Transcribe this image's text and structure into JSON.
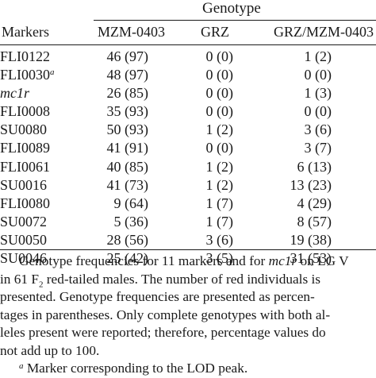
{
  "table": {
    "group_header": "Genotype",
    "columns": [
      "Markers",
      "MZM-0403",
      "GRZ",
      "GRZ/MZM-0403"
    ],
    "rows": [
      {
        "marker": "FLI0122",
        "sup": "",
        "mzm": "46 (97)",
        "grz": "0 (0)",
        "het": "1 (2)"
      },
      {
        "marker": "FLI0030",
        "sup": "a",
        "mzm": "48 (97)",
        "grz": "0 (0)",
        "het": "0 (0)"
      },
      {
        "marker": "mc1r",
        "sup": "",
        "mzm": "26 (85)",
        "grz": "0 (0)",
        "het": "1 (3)"
      },
      {
        "marker": "FLI0008",
        "sup": "",
        "mzm": "35 (93)",
        "grz": "0 (0)",
        "het": "0 (0)"
      },
      {
        "marker": "SU0080",
        "sup": "",
        "mzm": "50 (93)",
        "grz": "1 (2)",
        "het": "3 (6)"
      },
      {
        "marker": "FLI0089",
        "sup": "",
        "mzm": "41 (91)",
        "grz": "0 (0)",
        "het": "3 (7)"
      },
      {
        "marker": "FLI0061",
        "sup": "",
        "mzm": "40 (85)",
        "grz": "1 (2)",
        "het": "6 (13)"
      },
      {
        "marker": "SU0016",
        "sup": "",
        "mzm": "41 (73)",
        "grz": "1 (2)",
        "het": "13 (23)"
      },
      {
        "marker": "FLI0080",
        "sup": "",
        "mzm": "9 (64)",
        "grz": "1 (7)",
        "het": "4 (29)"
      },
      {
        "marker": "SU0072",
        "sup": "",
        "mzm": "5 (36)",
        "grz": "1 (7)",
        "het": "8 (57)"
      },
      {
        "marker": "SU0050",
        "sup": "",
        "mzm": "28 (56)",
        "grz": "3 (6)",
        "het": "19 (38)"
      },
      {
        "marker": "SU0046",
        "sup": "",
        "mzm": "25 (42)",
        "grz": "3 (5)",
        "het": "31 (53)"
      }
    ]
  },
  "notes": {
    "line1_a": "Genotype frequencies for 11 markers and for ",
    "line1_italic": "mc1r",
    "line1_b": " on LG V",
    "line2_a": "in 61 F",
    "line2_sub": "2",
    "line2_b": " red-tailed males. The number of red individuals is",
    "line3": "presented. Genotype frequencies are presented as percen-",
    "line4": "tages in parentheses. Only complete genotypes with both al-",
    "line5": "leles present were reported; therefore, percentage values do",
    "line6": "not add up to 100.",
    "footnote_sup": "a",
    "footnote_text": " Marker corresponding to the LOD peak."
  }
}
